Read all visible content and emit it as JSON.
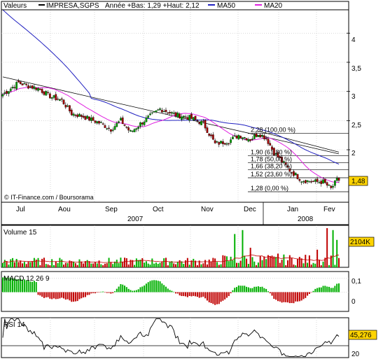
{
  "header": {
    "valeurs_label": "Valeurs",
    "symbol": "IMPRESA,SGPS",
    "range_text": "Année +Bas: 1,29 +Haut: 2,12",
    "ma50_label": "MA50",
    "ma20_label": "MA20"
  },
  "colors": {
    "candle_up": "#00a000",
    "candle_down": "#a00000",
    "ma50": "#2020c0",
    "ma20": "#e020e0",
    "trendline": "#000000",
    "macd_pos": "#00b000",
    "macd_neg": "#c00000",
    "volume_up": "#00b000",
    "volume_down": "#c00000",
    "volume_ma": "#c00000",
    "last_price_box": "#ffd400",
    "rsi_line": "#000000",
    "frame": "#000000",
    "grid": "#c0c0c0"
  },
  "credits": "© IT-Finance.com / Boursorama",
  "x_axis": {
    "months": [
      "Jul",
      "Aou",
      "Sep",
      "Oct",
      "Nov",
      "Dec",
      "Jan",
      "Fev"
    ],
    "years": [
      "2007",
      "2008"
    ]
  },
  "price_panel": {
    "y_ticks": [
      "4",
      "3,5",
      "3",
      "2,5",
      "2"
    ],
    "last_price": "1,48",
    "fibonacci": [
      {
        "label": "2,28 (100,00 %)",
        "value": 2.28
      },
      {
        "label": "1,90 (61,80 %)",
        "value": 1.9
      },
      {
        "label": "1,78 (50,00 %)",
        "value": 1.78
      },
      {
        "label": "1,66 (38,20 %)",
        "value": 1.66
      },
      {
        "label": "1,52 (23,60 %)",
        "value": 1.52
      },
      {
        "label": "1,28 (0,00 %)",
        "value": 1.28
      }
    ]
  },
  "volume_panel": {
    "title": "Volume 15",
    "last_value": "2104K"
  },
  "macd_panel": {
    "title": "MACD 12 26 9",
    "y_ticks": [
      "0,1",
      "0"
    ]
  },
  "rsi_panel": {
    "title": "RSI 14",
    "y_ticks": [
      "20"
    ],
    "last_value": "45,276"
  },
  "chart_data": {
    "type": "candlestick",
    "title": "IMPRESA,SGPS",
    "subtitle": "Année +Bas: 1,29 +Haut: 2,12",
    "ylim_price": [
      1.1,
      4.4
    ],
    "series": [
      {
        "name": "MA50"
      },
      {
        "name": "MA20"
      }
    ],
    "close_anchors": [
      {
        "day": 0,
        "value": 2.95
      },
      {
        "day": 8,
        "value": 3.15
      },
      {
        "day": 12,
        "value": 3.1
      },
      {
        "day": 18,
        "value": 3.05
      },
      {
        "day": 25,
        "value": 2.9
      },
      {
        "day": 30,
        "value": 2.85
      },
      {
        "day": 35,
        "value": 2.62
      },
      {
        "day": 40,
        "value": 2.58
      },
      {
        "day": 50,
        "value": 2.45
      },
      {
        "day": 55,
        "value": 2.35
      },
      {
        "day": 60,
        "value": 2.5
      },
      {
        "day": 65,
        "value": 2.3
      },
      {
        "day": 72,
        "value": 2.5
      },
      {
        "day": 80,
        "value": 2.7
      },
      {
        "day": 88,
        "value": 2.6
      },
      {
        "day": 95,
        "value": 2.55
      },
      {
        "day": 102,
        "value": 2.45
      },
      {
        "day": 108,
        "value": 2.1
      },
      {
        "day": 115,
        "value": 2.15
      },
      {
        "day": 120,
        "value": 2.25
      },
      {
        "day": 126,
        "value": 2.18
      },
      {
        "day": 130,
        "value": 2.28
      },
      {
        "day": 134,
        "value": 2.2
      },
      {
        "day": 138,
        "value": 1.95
      },
      {
        "day": 142,
        "value": 1.8
      },
      {
        "day": 146,
        "value": 1.65
      },
      {
        "day": 152,
        "value": 1.48
      },
      {
        "day": 158,
        "value": 1.45
      },
      {
        "day": 163,
        "value": 1.45
      },
      {
        "day": 167,
        "value": 1.33
      },
      {
        "day": 170,
        "value": 1.48
      }
    ],
    "volume_spikes": [
      {
        "day": 118,
        "rel": 0.85
      },
      {
        "day": 122,
        "rel": 0.95
      },
      {
        "day": 126,
        "rel": 0.5
      },
      {
        "day": 140,
        "rel": 0.35
      },
      {
        "day": 160,
        "rel": 0.45
      },
      {
        "day": 165,
        "rel": 1.0
      },
      {
        "day": 168,
        "rel": 0.95
      },
      {
        "day": 170,
        "rel": 0.7
      }
    ],
    "trendlines": [
      {
        "from": {
          "day": 0,
          "value": 3.25
        },
        "to": {
          "day": 171,
          "value": 1.93
        }
      },
      {
        "from": {
          "day": 130,
          "value": 2.32
        },
        "to": {
          "day": 171,
          "value": 1.96
        }
      }
    ],
    "rsi_range": [
      10,
      90
    ],
    "macd_range": [
      -0.14,
      0.15
    ]
  }
}
